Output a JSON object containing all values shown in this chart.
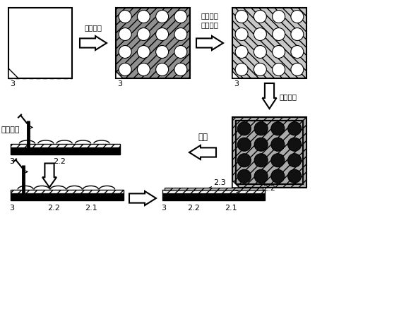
{
  "bg_color": "#ffffff",
  "label_laser": "激光打孔",
  "label_deposit": "淀积金属\n层、镀银",
  "label_print1": "印刷焊膏",
  "label_bake": "烘烤",
  "label_print2": "印刷焊膏",
  "lbl3": "3",
  "lbl22": "2.2",
  "lbl21": "2.1",
  "lbl23": "2.3"
}
